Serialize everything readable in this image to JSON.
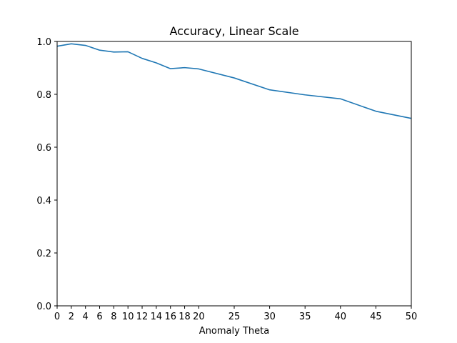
{
  "chart_data": {
    "type": "line",
    "title": "Accuracy, Linear Scale",
    "xlabel": "Anomaly Theta",
    "ylabel": "",
    "xlim": [
      0,
      50
    ],
    "ylim": [
      0.0,
      1.0
    ],
    "x_ticks": [
      0,
      2,
      4,
      6,
      8,
      10,
      12,
      14,
      16,
      18,
      20,
      25,
      30,
      35,
      40,
      45,
      50
    ],
    "y_ticks": [
      "0.0",
      "0.2",
      "0.4",
      "0.6",
      "0.8",
      "1.0"
    ],
    "grid": false,
    "series": [
      {
        "color": "#1f77b4",
        "x": [
          0,
          2,
          4,
          6,
          8,
          10,
          12,
          14,
          16,
          18,
          20,
          25,
          30,
          35,
          40,
          45,
          50
        ],
        "y": [
          0.982,
          0.991,
          0.985,
          0.967,
          0.96,
          0.961,
          0.936,
          0.919,
          0.897,
          0.901,
          0.896,
          0.862,
          0.817,
          0.798,
          0.783,
          0.736,
          0.709
        ]
      }
    ]
  }
}
